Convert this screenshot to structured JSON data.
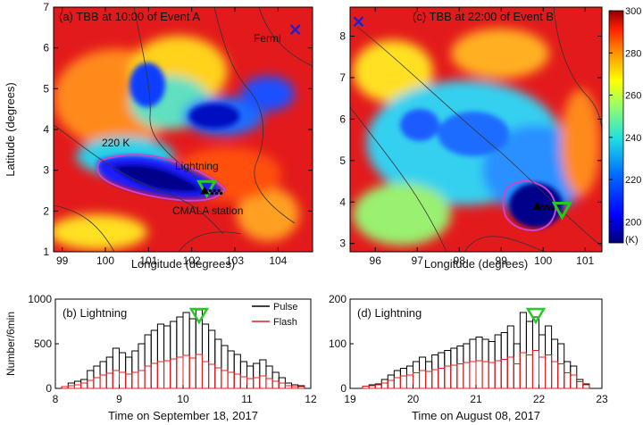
{
  "panels": {
    "a": {
      "title": "(a) TBB at 10:00 of Event A",
      "xlabel": "Longitude (degrees)",
      "ylabel": "Latitude (degrees)",
      "annotations": {
        "temp": "220 K",
        "lightning": "Lightning",
        "station": "CMALA station",
        "site": "Fermi"
      }
    },
    "c": {
      "title": "(c) TBB at 22:00 of Event B",
      "xlabel": "Longitude (degrees)"
    },
    "colorbar": {
      "unit": "(K)"
    },
    "b": {
      "title": "(b) Lightning",
      "xlabel": "Time on September 18, 2017",
      "ylabel": "Number/6min"
    },
    "d": {
      "title": "(d) Lightning",
      "xlabel": "Time on August 08, 2017"
    },
    "legend": {
      "pulse": "Pulse",
      "flash": "Flash"
    }
  },
  "colors": {
    "pulse": "#000000",
    "flash": "#e02020",
    "marker_green": "#22cc22",
    "marker_blue": "#2020cc",
    "contour_220K": "#cc44cc"
  },
  "chart_data": [
    {
      "type": "heatmap",
      "panel": "a",
      "title": "(a) TBB at 10:00 of Event A",
      "xlabel": "Longitude (degrees)",
      "ylabel": "Latitude (degrees)",
      "xlim": [
        98.8,
        104.8
      ],
      "ylim": [
        1,
        7
      ],
      "xticks": [
        99,
        100,
        101,
        102,
        103,
        104
      ],
      "yticks": [
        1,
        2,
        3,
        4,
        5,
        6,
        7
      ],
      "colorbar_range": [
        190,
        300
      ],
      "markers": [
        {
          "kind": "lightning-triangle",
          "lon": 102.35,
          "lat": 2.55
        },
        {
          "kind": "station",
          "lon": 102.3,
          "lat": 2.5
        },
        {
          "kind": "site-cross",
          "lon": 104.4,
          "lat": 6.45
        }
      ]
    },
    {
      "type": "heatmap",
      "panel": "c",
      "title": "(c) TBB at 22:00 of Event B",
      "xlabel": "Longitude (degrees)",
      "xlim": [
        95.4,
        101.4
      ],
      "ylim": [
        2.8,
        8.7
      ],
      "xticks": [
        96,
        97,
        98,
        99,
        100,
        101
      ],
      "yticks": [
        3,
        4,
        5,
        6,
        7,
        8
      ],
      "colorbar_label": "(K)",
      "colorbar_ticks": [
        200,
        220,
        240,
        260,
        280,
        300
      ],
      "colorbar_range": [
        190,
        300
      ],
      "markers": [
        {
          "kind": "lightning-triangle",
          "lon": 100.45,
          "lat": 3.8
        },
        {
          "kind": "station",
          "lon": 99.85,
          "lat": 3.9
        },
        {
          "kind": "site-cross",
          "lon": 95.6,
          "lat": 8.35
        }
      ]
    },
    {
      "type": "bar",
      "panel": "b",
      "title": "(b) Lightning",
      "xlabel": "Time on September 18, 2017",
      "ylabel": "Number/6min",
      "xlim": [
        8,
        12
      ],
      "ylim": [
        0,
        1000
      ],
      "xticks": [
        8,
        9,
        10,
        11,
        12
      ],
      "yticks": [
        0,
        500,
        1000
      ],
      "bin_start": 8.1,
      "bin_width": 0.1,
      "series": [
        {
          "name": "Pulse",
          "values": [
            20,
            60,
            80,
            100,
            200,
            250,
            300,
            350,
            450,
            400,
            350,
            420,
            500,
            600,
            650,
            720,
            700,
            750,
            800,
            850,
            780,
            880,
            720,
            650,
            550,
            480,
            420,
            380,
            300,
            250,
            280,
            320,
            250,
            180,
            120,
            60,
            40,
            30
          ]
        },
        {
          "name": "Flash",
          "values": [
            20,
            30,
            40,
            60,
            90,
            120,
            150,
            170,
            200,
            180,
            160,
            180,
            200,
            250,
            280,
            300,
            310,
            330,
            350,
            370,
            340,
            380,
            300,
            270,
            230,
            200,
            180,
            160,
            130,
            110,
            120,
            140,
            110,
            80,
            60,
            30,
            20,
            20
          ]
        }
      ],
      "marker_x": 10.25
    },
    {
      "type": "bar",
      "panel": "d",
      "title": "(d) Lightning",
      "xlabel": "Time on August 08, 2017",
      "xlim": [
        19,
        23
      ],
      "ylim": [
        0,
        200
      ],
      "xticks": [
        19,
        20,
        21,
        22,
        23
      ],
      "yticks": [
        0,
        100,
        200
      ],
      "bin_start": 19.2,
      "bin_width": 0.1,
      "series": [
        {
          "name": "Pulse",
          "values": [
            5,
            8,
            10,
            20,
            30,
            40,
            45,
            50,
            60,
            70,
            60,
            75,
            80,
            85,
            90,
            95,
            100,
            110,
            115,
            110,
            105,
            120,
            125,
            140,
            100,
            170,
            150,
            160,
            120,
            140,
            110,
            100,
            60,
            50,
            20,
            10
          ]
        },
        {
          "name": "Flash",
          "values": [
            5,
            6,
            8,
            12,
            18,
            24,
            28,
            30,
            35,
            40,
            38,
            42,
            45,
            50,
            52,
            55,
            58,
            60,
            62,
            60,
            58,
            62,
            65,
            70,
            55,
            80,
            75,
            85,
            70,
            75,
            60,
            55,
            35,
            30,
            15,
            8
          ]
        }
      ],
      "marker_x": 21.95
    }
  ]
}
